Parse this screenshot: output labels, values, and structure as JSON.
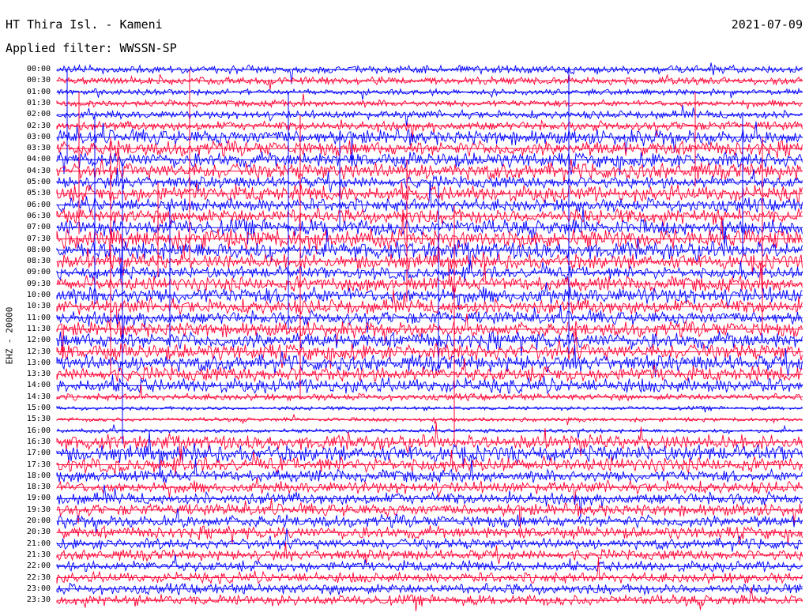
{
  "header": {
    "station_title": "HT Thira Isl. - Kameni",
    "filter_label": "Applied filter: WWSSN-SP",
    "date": "2021-07-09",
    "channel_label": "EHZ - 20000"
  },
  "chart_data": {
    "type": "line",
    "title": "HT Thira Isl. - Kameni",
    "subtitle": "Applied filter: WWSSN-SP",
    "ylabel": "EHZ - 20000",
    "xlabel": "",
    "row_labels": [
      "00:00",
      "00:30",
      "01:00",
      "01:30",
      "02:00",
      "02:30",
      "03:00",
      "03:30",
      "04:00",
      "04:30",
      "05:00",
      "05:30",
      "06:00",
      "06:30",
      "07:00",
      "07:30",
      "08:00",
      "08:30",
      "09:00",
      "09:30",
      "10:00",
      "10:30",
      "11:00",
      "11:30",
      "12:00",
      "12:30",
      "13:00",
      "13:30",
      "14:00",
      "14:30",
      "15:00",
      "15:30",
      "16:00",
      "16:30",
      "17:00",
      "17:30",
      "18:00",
      "18:30",
      "19:00",
      "19:30",
      "20:00",
      "20:30",
      "21:00",
      "21:30",
      "22:00",
      "22:30",
      "23:00",
      "23:30"
    ],
    "trace_colors": [
      "#0000ff",
      "#ff0033"
    ],
    "row_amplitude": [
      0.3,
      0.28,
      0.22,
      0.25,
      0.3,
      0.35,
      0.55,
      0.55,
      0.55,
      0.6,
      0.45,
      0.6,
      0.5,
      0.55,
      0.6,
      0.7,
      0.65,
      0.55,
      0.45,
      0.55,
      0.6,
      0.55,
      0.5,
      0.55,
      0.6,
      0.6,
      0.6,
      0.55,
      0.55,
      0.25,
      0.15,
      0.15,
      0.15,
      0.55,
      0.6,
      0.55,
      0.45,
      0.45,
      0.45,
      0.45,
      0.45,
      0.45,
      0.4,
      0.4,
      0.4,
      0.4,
      0.4,
      0.4
    ],
    "grid": false,
    "legend": "none"
  }
}
